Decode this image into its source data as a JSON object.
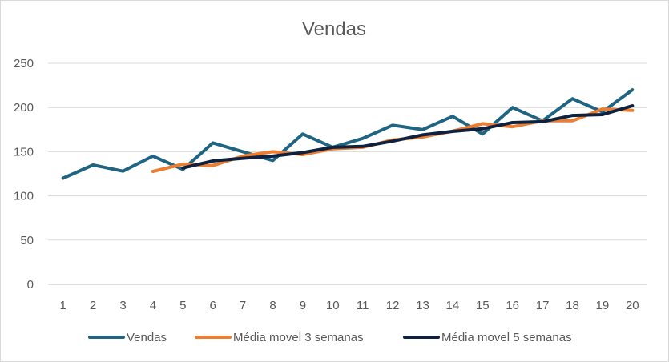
{
  "chart_data": {
    "type": "line",
    "title": "Vendas",
    "xlabel": "",
    "ylabel": "",
    "categories": [
      "1",
      "2",
      "3",
      "4",
      "5",
      "6",
      "7",
      "8",
      "9",
      "10",
      "11",
      "12",
      "13",
      "14",
      "15",
      "16",
      "17",
      "18",
      "19",
      "20"
    ],
    "ylim": [
      0,
      250
    ],
    "yticks": [
      "0",
      "50",
      "100",
      "150",
      "200",
      "250"
    ],
    "grid": true,
    "legend_position": "bottom",
    "series": [
      {
        "name": "Vendas",
        "color": "#1f6582",
        "values": [
          120,
          135,
          128,
          145,
          130,
          160,
          150,
          140,
          170,
          155,
          165,
          180,
          175,
          190,
          170,
          200,
          185,
          210,
          195,
          220
        ]
      },
      {
        "name": "Média movel 3 semanas",
        "color": "#ed7d31",
        "values": [
          null,
          null,
          null,
          127.7,
          136,
          134.3,
          145,
          150,
          146.7,
          153.3,
          155,
          163.3,
          166.7,
          173.3,
          181.7,
          178.3,
          185,
          185,
          198.3,
          196.7
        ]
      },
      {
        "name": "Média movel 5 semanas",
        "color": "#0e2240",
        "values": [
          null,
          null,
          null,
          null,
          131.6,
          139.6,
          142.6,
          145,
          149,
          155,
          156,
          162,
          169,
          173,
          176,
          183,
          184,
          191,
          192,
          202
        ]
      }
    ]
  }
}
